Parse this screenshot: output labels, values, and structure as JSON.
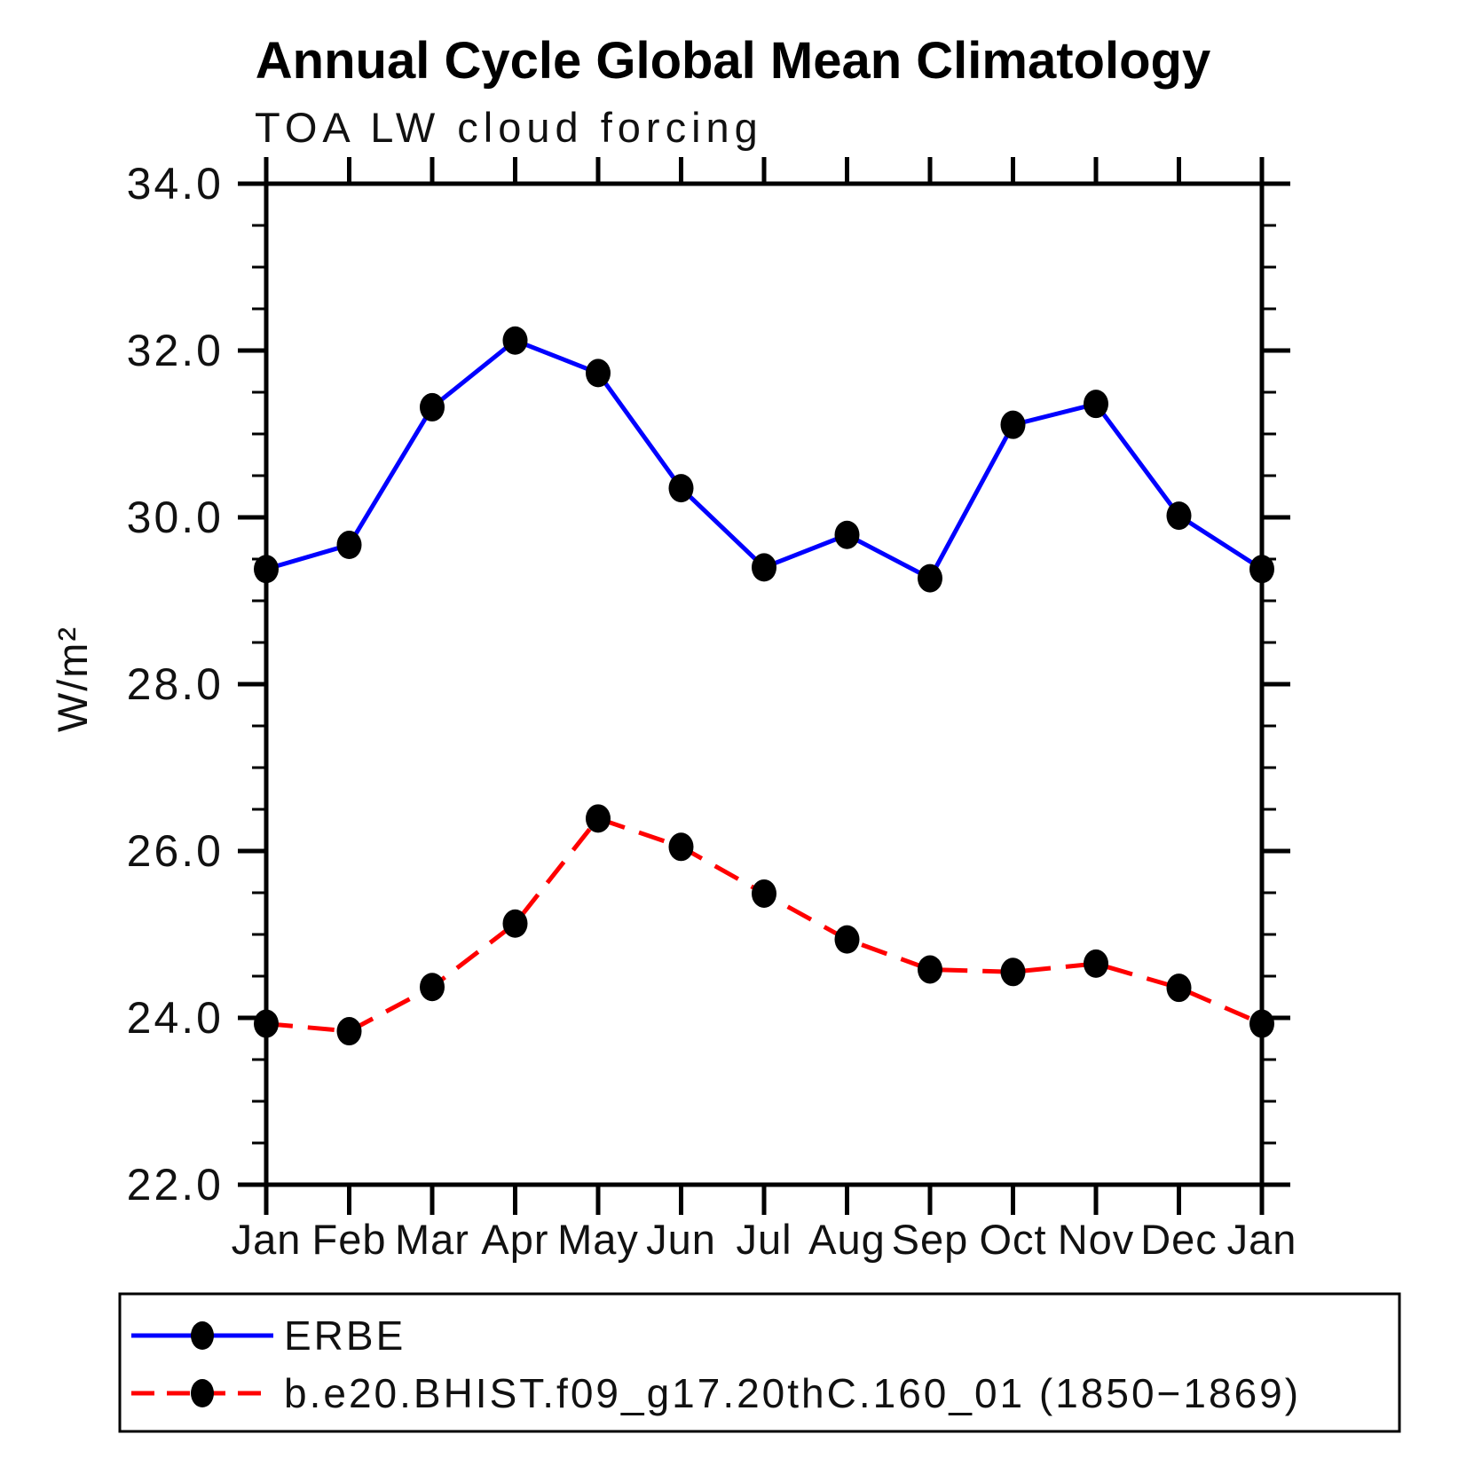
{
  "title": "Annual Cycle Global Mean Climatology",
  "subtitle": "TOA LW cloud forcing",
  "y_axis": {
    "label": "W/m²",
    "min": 22.0,
    "max": 34.0,
    "major_step": 2.0,
    "minor_step": 0.5,
    "tick_labels": [
      "22.0",
      "24.0",
      "26.0",
      "28.0",
      "30.0",
      "32.0",
      "34.0"
    ]
  },
  "x_axis": {
    "tick_labels": [
      "Jan",
      "Feb",
      "Mar",
      "Apr",
      "May",
      "Jun",
      "Jul",
      "Aug",
      "Sep",
      "Oct",
      "Nov",
      "Dec",
      "Jan"
    ]
  },
  "legend": {
    "entries": [
      {
        "label": "ERBE",
        "color": "#0000ff",
        "line_style": "solid",
        "marker": "filled-circle"
      },
      {
        "label": "b.e20.BHIST.f09_g17.20thC.160_01 (1850−1869)",
        "color": "#ff0000",
        "line_style": "dashed",
        "marker": "filled-circle"
      }
    ]
  },
  "colors": {
    "erbe_line": "#0000ff",
    "model_line": "#ff0000",
    "marker": "#000000",
    "axis": "#000000",
    "background": "#ffffff"
  },
  "chart_data": {
    "type": "line",
    "categories": [
      "Jan",
      "Feb",
      "Mar",
      "Apr",
      "May",
      "Jun",
      "Jul",
      "Aug",
      "Sep",
      "Oct",
      "Nov",
      "Dec",
      "Jan"
    ],
    "series": [
      {
        "name": "ERBE",
        "color": "#0000ff",
        "style": "solid",
        "marker": "filled-circle",
        "values": [
          29.38,
          29.67,
          31.32,
          32.12,
          31.73,
          30.35,
          29.4,
          29.79,
          29.27,
          31.11,
          31.36,
          30.02,
          29.38
        ]
      },
      {
        "name": "b.e20.BHIST.f09_g17.20thC.160_01 (1850−1869)",
        "color": "#ff0000",
        "style": "dashed",
        "marker": "filled-circle",
        "values": [
          23.93,
          23.84,
          24.37,
          25.13,
          26.39,
          26.05,
          25.49,
          24.94,
          24.58,
          24.55,
          24.65,
          24.36,
          23.93
        ]
      }
    ],
    "title": "Annual Cycle Global Mean Climatology",
    "subtitle": "TOA LW cloud forcing",
    "ylabel": "W/m²",
    "ylim": [
      22.0,
      34.0
    ],
    "ytick_major": [
      22.0,
      24.0,
      26.0,
      28.0,
      30.0,
      32.0,
      34.0
    ],
    "ytick_minor_step": 0.5,
    "grid": false,
    "legend_position": "bottom"
  }
}
